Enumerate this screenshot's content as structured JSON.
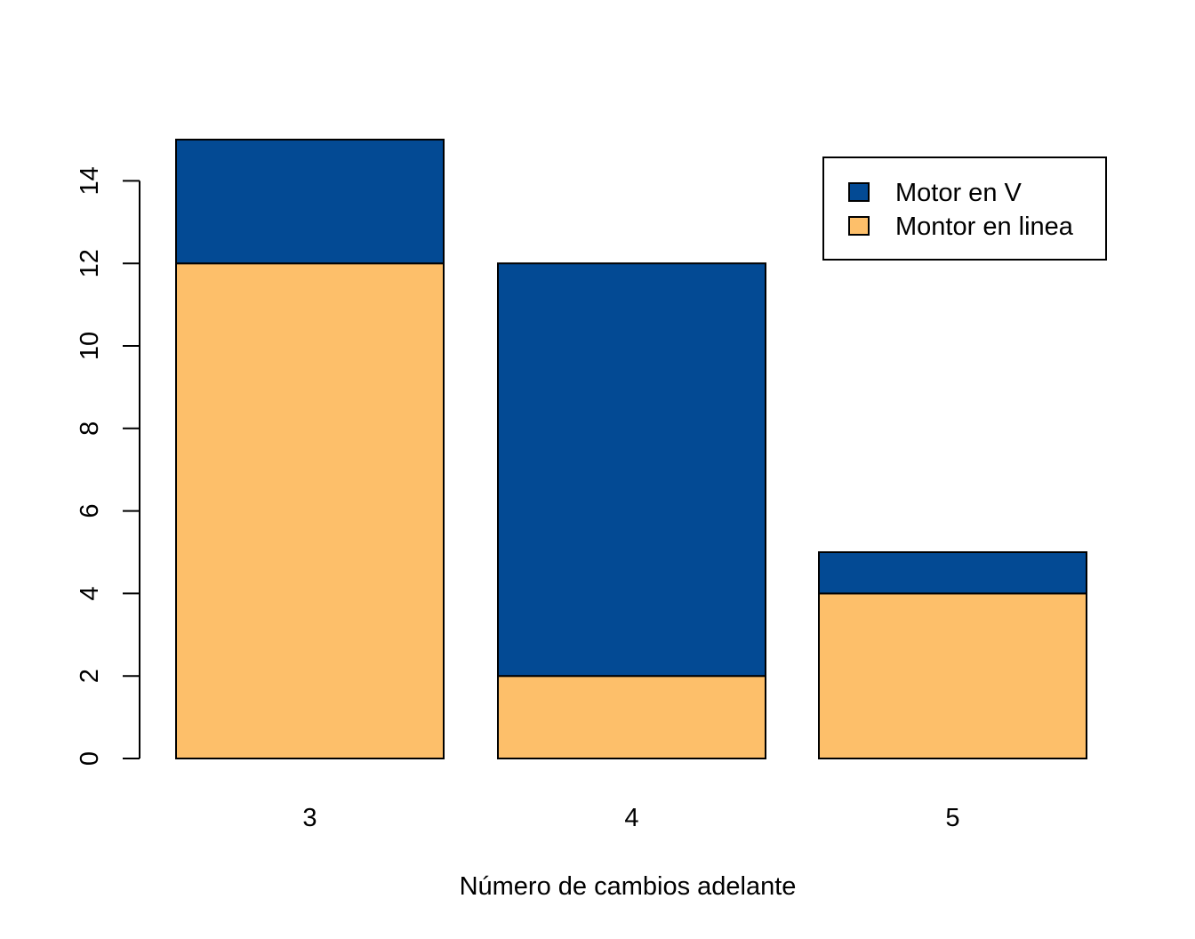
{
  "chart_data": {
    "type": "bar",
    "stacked": true,
    "categories": [
      "3",
      "4",
      "5"
    ],
    "series": [
      {
        "name": "Montor en linea",
        "values": [
          12,
          2,
          4
        ],
        "color": "#FDBF6A"
      },
      {
        "name": "Motor en V",
        "values": [
          3,
          10,
          1
        ],
        "color": "#034A94"
      }
    ],
    "xlabel": "Número de cambios adelante",
    "ylabel": "",
    "title": "",
    "ylim": [
      0,
      15
    ],
    "yticks": [
      0,
      2,
      4,
      6,
      8,
      10,
      12,
      14
    ],
    "grid": false,
    "legend": {
      "position": "top-right",
      "entries": [
        {
          "label": "Motor en V",
          "color": "#034A94"
        },
        {
          "label": "Montor en linea",
          "color": "#FDBF6A"
        }
      ]
    }
  }
}
